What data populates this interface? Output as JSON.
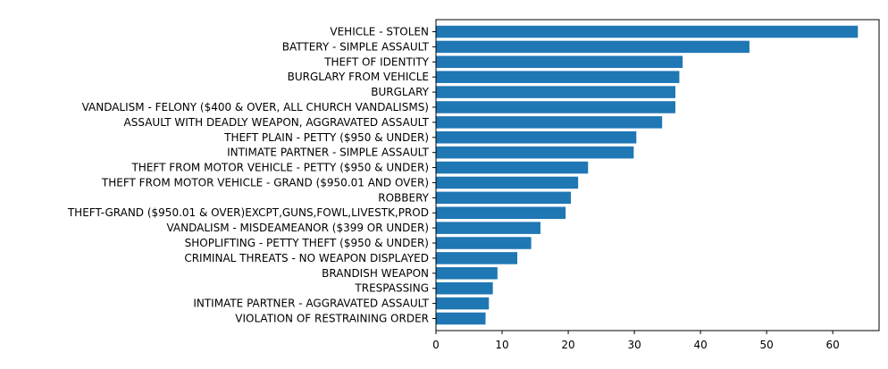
{
  "chart_data": {
    "type": "bar",
    "orientation": "horizontal",
    "title": "",
    "xlabel": "",
    "ylabel": "",
    "xlim": [
      0,
      67
    ],
    "xticks": [
      0,
      10,
      20,
      30,
      40,
      50,
      60
    ],
    "grid": false,
    "legend": "none",
    "bar_color": "#1f77b4",
    "categories": [
      "VEHICLE - STOLEN",
      "BATTERY - SIMPLE ASSAULT",
      "THEFT OF IDENTITY",
      "BURGLARY FROM VEHICLE",
      "BURGLARY",
      "VANDALISM - FELONY ($400 & OVER, ALL CHURCH VANDALISMS)",
      "ASSAULT WITH DEADLY WEAPON, AGGRAVATED ASSAULT",
      "THEFT PLAIN - PETTY ($950 & UNDER)",
      "INTIMATE PARTNER - SIMPLE ASSAULT",
      "THEFT FROM MOTOR VEHICLE - PETTY ($950 & UNDER)",
      "THEFT FROM MOTOR VEHICLE - GRAND ($950.01 AND OVER)",
      "ROBBERY",
      "THEFT-GRAND ($950.01 & OVER)EXCPT,GUNS,FOWL,LIVESTK,PROD",
      "VANDALISM - MISDEAMEANOR ($399 OR UNDER)",
      "SHOPLIFTING - PETTY THEFT ($950 & UNDER)",
      "CRIMINAL THREATS - NO WEAPON DISPLAYED",
      "BRANDISH WEAPON",
      "TRESPASSING",
      "INTIMATE PARTNER - AGGRAVATED ASSAULT",
      "VIOLATION OF RESTRAINING ORDER"
    ],
    "values": [
      63.8,
      47.4,
      37.3,
      36.8,
      36.2,
      36.2,
      34.2,
      30.3,
      29.9,
      23.0,
      21.5,
      20.4,
      19.6,
      15.8,
      14.4,
      12.3,
      9.3,
      8.6,
      8.0,
      7.5
    ]
  }
}
